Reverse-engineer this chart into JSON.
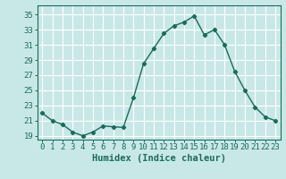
{
  "x": [
    0,
    1,
    2,
    3,
    4,
    5,
    6,
    7,
    8,
    9,
    10,
    11,
    12,
    13,
    14,
    15,
    16,
    17,
    18,
    19,
    20,
    21,
    22,
    23
  ],
  "y": [
    22.0,
    21.0,
    20.5,
    19.5,
    19.0,
    19.5,
    20.3,
    20.2,
    20.1,
    24.0,
    28.5,
    30.5,
    32.5,
    33.5,
    34.0,
    34.8,
    32.3,
    33.0,
    31.0,
    27.5,
    25.0,
    22.8,
    21.5,
    21.0
  ],
  "xlabel": "Humidex (Indice chaleur)",
  "line_color": "#1a6b5a",
  "bg_color": "#c8e8e8",
  "grid_color": "#ffffff",
  "ylim": [
    18.5,
    36.2
  ],
  "yticks": [
    19,
    21,
    23,
    25,
    27,
    29,
    31,
    33,
    35
  ],
  "xticks": [
    0,
    1,
    2,
    3,
    4,
    5,
    6,
    7,
    8,
    9,
    10,
    11,
    12,
    13,
    14,
    15,
    16,
    17,
    18,
    19,
    20,
    21,
    22,
    23
  ],
  "marker": "D",
  "marker_size": 2.2,
  "line_width": 1.0,
  "xlabel_fontsize": 7.5,
  "tick_fontsize": 6.5
}
